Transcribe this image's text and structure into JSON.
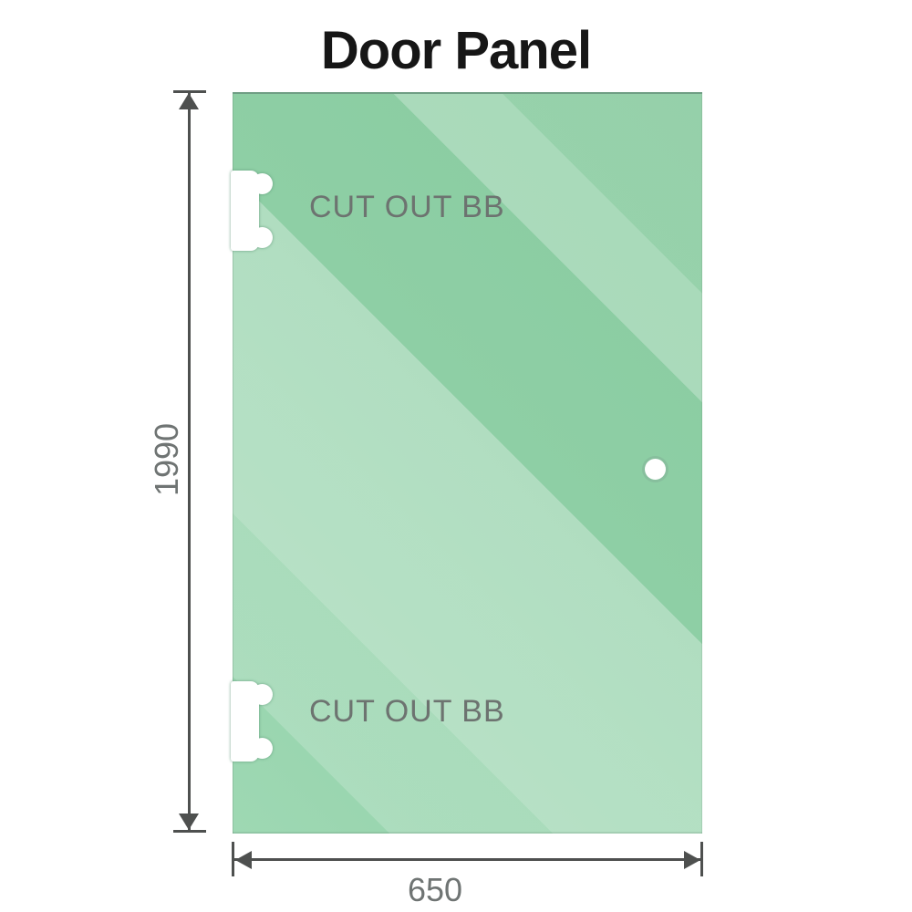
{
  "title": "Door Panel",
  "dimensions": {
    "height": "1990",
    "width": "650"
  },
  "cutouts": [
    {
      "label": "CUT OUT BB"
    },
    {
      "label": "CUT OUT BB"
    }
  ],
  "colors": {
    "background": "#ffffff",
    "title_text": "#161616",
    "glass_base": "#8ecfa5",
    "glass_light": "#9ed8b3",
    "glass_deep": "#89cba0",
    "glass_edge": "#6f9e84",
    "cutout_fill": "#ffffff",
    "cutout_text": "#6d7370",
    "dimension_line": "#4e504f",
    "dimension_text": "#6f7473"
  }
}
